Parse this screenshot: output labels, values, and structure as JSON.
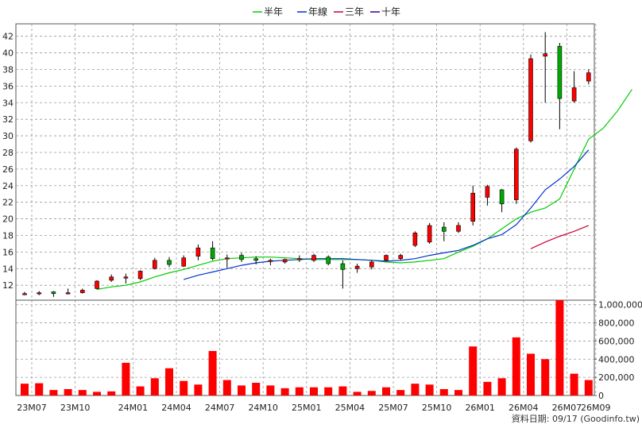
{
  "legend": [
    {
      "label": "半年",
      "color": "#00cc00"
    },
    {
      "label": "年線",
      "color": "#0033cc"
    },
    {
      "label": "三年",
      "color": "#cc0033"
    },
    {
      "label": "十年",
      "color": "#330099"
    }
  ],
  "source_text": "資料日期: 09/17  (Goodinfo.tw)",
  "chart_data": [
    {
      "type": "candlestick",
      "title": "",
      "y_ticks": [
        12,
        14,
        16,
        18,
        20,
        22,
        24,
        26,
        28,
        30,
        32,
        34,
        36,
        38,
        40,
        42
      ],
      "ylim": [
        10.2,
        43.5
      ],
      "x_ticks": [
        "23M07",
        "23M10",
        "24M01",
        "24M04",
        "24M07",
        "24M10",
        "25M01",
        "25M04",
        "25M07",
        "25M10",
        "26M01",
        "26M04",
        "26M07",
        "26M09"
      ],
      "grid": true,
      "up_color": "#ff0000",
      "down_color": "#00aa00",
      "candles": [
        {
          "open": 11.0,
          "high": 11.2,
          "low": 10.8,
          "close": 11.0
        },
        {
          "open": 11.0,
          "high": 11.3,
          "low": 10.8,
          "close": 11.1
        },
        {
          "open": 11.2,
          "high": 11.3,
          "low": 10.6,
          "close": 11.0
        },
        {
          "open": 11.0,
          "high": 11.6,
          "low": 10.9,
          "close": 11.1
        },
        {
          "open": 11.1,
          "high": 11.6,
          "low": 11.0,
          "close": 11.4
        },
        {
          "open": 11.6,
          "high": 12.6,
          "low": 11.5,
          "close": 12.5
        },
        {
          "open": 12.6,
          "high": 13.3,
          "low": 12.4,
          "close": 13.0
        },
        {
          "open": 13.0,
          "high": 13.4,
          "low": 12.2,
          "close": 13.0
        },
        {
          "open": 12.8,
          "high": 13.8,
          "low": 12.6,
          "close": 13.7
        },
        {
          "open": 14.0,
          "high": 15.3,
          "low": 13.9,
          "close": 15.0
        },
        {
          "open": 15.0,
          "high": 15.4,
          "low": 14.2,
          "close": 14.5
        },
        {
          "open": 14.3,
          "high": 15.6,
          "low": 14.2,
          "close": 15.3
        },
        {
          "open": 15.5,
          "high": 16.9,
          "low": 15.0,
          "close": 16.5
        },
        {
          "open": 16.5,
          "high": 17.3,
          "low": 15.0,
          "close": 15.2
        },
        {
          "open": 15.2,
          "high": 15.7,
          "low": 14.1,
          "close": 15.3
        },
        {
          "open": 15.6,
          "high": 15.9,
          "low": 14.8,
          "close": 15.1
        },
        {
          "open": 15.2,
          "high": 15.5,
          "low": 14.5,
          "close": 15.0
        },
        {
          "open": 15.0,
          "high": 15.2,
          "low": 14.4,
          "close": 15.0
        },
        {
          "open": 14.8,
          "high": 15.2,
          "low": 14.6,
          "close": 15.1
        },
        {
          "open": 15.1,
          "high": 15.6,
          "low": 14.8,
          "close": 15.2
        },
        {
          "open": 15.0,
          "high": 15.8,
          "low": 14.8,
          "close": 15.6
        },
        {
          "open": 15.4,
          "high": 15.6,
          "low": 14.4,
          "close": 14.6
        },
        {
          "open": 14.6,
          "high": 15.0,
          "low": 11.6,
          "close": 13.9
        },
        {
          "open": 14.0,
          "high": 14.6,
          "low": 13.5,
          "close": 14.3
        },
        {
          "open": 14.2,
          "high": 15.0,
          "low": 13.9,
          "close": 14.8
        },
        {
          "open": 15.0,
          "high": 15.7,
          "low": 14.9,
          "close": 15.6
        },
        {
          "open": 15.2,
          "high": 15.8,
          "low": 15.0,
          "close": 15.6
        },
        {
          "open": 16.8,
          "high": 18.5,
          "low": 16.6,
          "close": 18.3
        },
        {
          "open": 17.2,
          "high": 19.5,
          "low": 17.0,
          "close": 19.2
        },
        {
          "open": 19.0,
          "high": 19.6,
          "low": 17.3,
          "close": 18.5
        },
        {
          "open": 18.5,
          "high": 19.6,
          "low": 18.3,
          "close": 19.2
        },
        {
          "open": 19.7,
          "high": 24.0,
          "low": 19.2,
          "close": 23.1
        },
        {
          "open": 22.6,
          "high": 24.1,
          "low": 21.6,
          "close": 23.9
        },
        {
          "open": 23.5,
          "high": 23.6,
          "low": 20.8,
          "close": 21.8
        },
        {
          "open": 22.3,
          "high": 28.6,
          "low": 21.8,
          "close": 28.4
        },
        {
          "open": 29.4,
          "high": 39.8,
          "low": 29.2,
          "close": 39.3
        },
        {
          "open": 39.6,
          "high": 42.5,
          "low": 34.0,
          "close": 39.9
        },
        {
          "open": 40.8,
          "high": 41.2,
          "low": 30.8,
          "close": 34.5
        },
        {
          "open": 34.2,
          "high": 37.8,
          "low": 34.0,
          "close": 35.8
        },
        {
          "open": 36.6,
          "high": 38.0,
          "low": 36.2,
          "close": 37.6
        }
      ],
      "series": [
        {
          "name": "半年",
          "color": "#00cc00",
          "start": 5,
          "values": [
            11.5,
            11.8,
            12.0,
            12.4,
            13.0,
            13.5,
            13.9,
            14.4,
            14.9,
            15.2,
            15.3,
            15.4,
            15.4,
            15.3,
            15.2,
            15.1,
            15.1,
            15.1,
            15.1,
            15.0,
            14.8,
            14.7,
            14.8,
            15.0,
            15.2,
            16.0,
            16.7,
            17.6,
            18.8,
            20.0,
            20.8,
            21.3,
            22.4,
            26.0,
            29.6,
            30.9,
            33.0,
            35.6
          ]
        },
        {
          "name": "年線",
          "color": "#0033cc",
          "start": 11,
          "values": [
            12.7,
            13.2,
            13.6,
            14.0,
            14.4,
            14.7,
            14.9,
            15.0,
            15.1,
            15.2,
            15.2,
            15.2,
            15.1,
            15.0,
            14.9,
            15.0,
            15.2,
            15.6,
            15.9,
            16.2,
            16.8,
            17.6,
            18.1,
            19.3,
            21.3,
            23.5,
            24.8,
            26.3,
            28.3
          ]
        },
        {
          "name": "三年",
          "color": "#cc0033",
          "start": 35,
          "values": [
            16.4,
            17.2,
            17.9,
            18.5,
            19.2
          ]
        }
      ]
    },
    {
      "type": "bar",
      "title": "",
      "y_ticks": [
        0,
        200000,
        400000,
        600000,
        800000,
        1000000
      ],
      "y_tick_labels": [
        "0",
        "200,000",
        "400,000",
        "600,000",
        "800,000",
        "1,000,000"
      ],
      "ylim": [
        0,
        1050000
      ],
      "grid": true,
      "bar_color": "#ff0000",
      "values": [
        130000,
        135000,
        60000,
        70000,
        60000,
        40000,
        45000,
        360000,
        100000,
        190000,
        300000,
        160000,
        120000,
        490000,
        170000,
        110000,
        140000,
        110000,
        80000,
        90000,
        90000,
        90000,
        100000,
        40000,
        50000,
        90000,
        60000,
        130000,
        120000,
        70000,
        60000,
        540000,
        150000,
        190000,
        640000,
        460000,
        400000,
        1050000,
        240000,
        170000
      ]
    }
  ]
}
